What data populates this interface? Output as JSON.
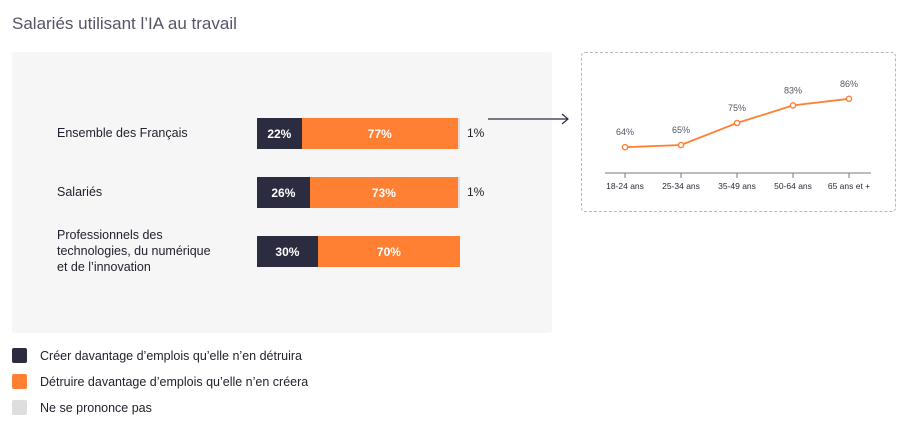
{
  "title": "Salariés utilisant l’IA au travail",
  "colors": {
    "create": "#2c2c40",
    "destroy": "#ff8033",
    "no_opinion": "#dedede",
    "line": "#ff8033"
  },
  "chart_data": [
    {
      "type": "bar",
      "orientation": "horizontal-stacked",
      "categories": [
        "Ensemble des Français",
        "Salariés",
        "Professionnels des technologies, du numérique et de l’innovation"
      ],
      "category_lines": [
        [
          "Ensemble des Français"
        ],
        [
          "Salariés"
        ],
        [
          "Professionnels des",
          "technologies, du numérique",
          "et de l’innovation"
        ]
      ],
      "series": [
        {
          "name": "Créer davantage d’emplois qu’elle n’en détruira",
          "values": [
            22,
            26,
            30
          ],
          "labels": [
            "22%",
            "26%",
            "30%"
          ]
        },
        {
          "name": "Détruire davantage d’emplois qu’elle n’en créera",
          "values": [
            77,
            73,
            70
          ],
          "labels": [
            "77%",
            "73%",
            "70%"
          ]
        },
        {
          "name": "Ne se prononce pas",
          "values": [
            1,
            1,
            0
          ],
          "labels": [
            "1%",
            "1%",
            ""
          ]
        }
      ]
    },
    {
      "type": "line",
      "x": [
        "18-24 ans",
        "25-34 ans",
        "35-49 ans",
        "50-64 ans",
        "65 ans et +"
      ],
      "y": [
        64,
        65,
        75,
        83,
        86
      ],
      "labels": [
        "64%",
        "65%",
        "75%",
        "83%",
        "86%"
      ]
    }
  ],
  "legend": [
    {
      "label": "Créer davantage d’emplois qu’elle n’en détruira",
      "color": "#2c2c40"
    },
    {
      "label": "Détruire davantage d’emplois qu’elle n’en créera",
      "color": "#ff8033"
    },
    {
      "label": "Ne se prononce pas",
      "color": "#dedede"
    }
  ]
}
